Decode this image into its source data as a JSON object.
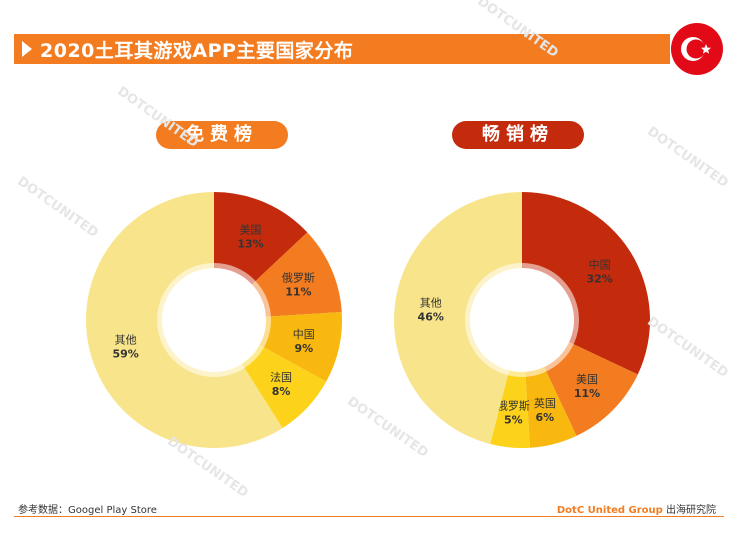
{
  "header": {
    "title": "2020土耳其游戏APP主要国家分布"
  },
  "flag": {
    "icon": "turkey-flag-icon",
    "color": "#e30a17"
  },
  "footer": {
    "source": "参考数据：Googel Play Store",
    "brand": "DotC United Group",
    "suffix": " 出海研究院"
  },
  "watermark": "DOTCUNITED",
  "chart_data": [
    {
      "type": "pie",
      "title": "免费榜",
      "labels": [
        "美国",
        "俄罗斯",
        "中国",
        "法国",
        "其他"
      ],
      "values": [
        13,
        11,
        9,
        8,
        59
      ],
      "value_labels": [
        "13%",
        "11%",
        "9%",
        "8%",
        "59%"
      ],
      "colors": [
        "#c42b0d",
        "#f47c20",
        "#f8b810",
        "#fcd21a",
        "#f8e48a"
      ]
    },
    {
      "type": "pie",
      "title": "畅销榜",
      "labels": [
        "中国",
        "美国",
        "英国",
        "俄罗斯",
        "其他"
      ],
      "values": [
        32,
        11,
        6,
        5,
        46
      ],
      "value_labels": [
        "32%",
        "11%",
        "6%",
        "5%",
        "46%"
      ],
      "colors": [
        "#c42b0d",
        "#f47c20",
        "#f8b810",
        "#fcd21a",
        "#f8e48a"
      ]
    }
  ]
}
